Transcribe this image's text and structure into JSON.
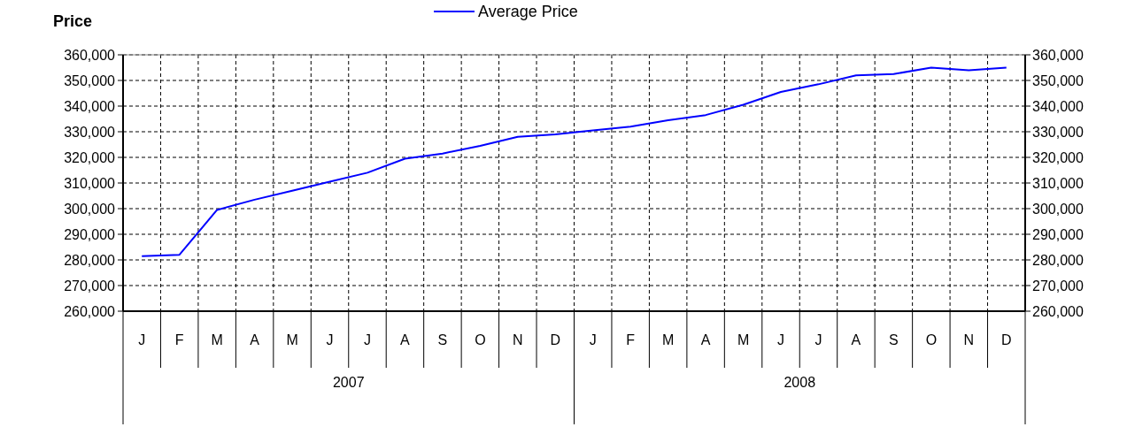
{
  "chart_data": {
    "type": "line",
    "ylabel": "Price",
    "categories": [
      "J",
      "F",
      "M",
      "A",
      "M",
      "J",
      "J",
      "A",
      "S",
      "O",
      "N",
      "D",
      "J",
      "F",
      "M",
      "A",
      "M",
      "J",
      "J",
      "A",
      "S",
      "O",
      "N",
      "D"
    ],
    "series": [
      {
        "name": "Average Price",
        "color": "#0000ff",
        "values": [
          281500,
          282000,
          299500,
          303500,
          307000,
          310500,
          314000,
          319500,
          321500,
          324500,
          328000,
          329000,
          330500,
          332000,
          334500,
          336500,
          340500,
          345500,
          348500,
          352000,
          352500,
          355000,
          354000,
          355000
        ]
      }
    ],
    "ylim": [
      260000,
      360000
    ],
    "yticks": [
      {
        "value": 260000,
        "label": "260,000"
      },
      {
        "value": 270000,
        "label": "270,000"
      },
      {
        "value": 280000,
        "label": "280,000"
      },
      {
        "value": 290000,
        "label": "290,000"
      },
      {
        "value": 300000,
        "label": "300,000"
      },
      {
        "value": 310000,
        "label": "310,000"
      },
      {
        "value": 320000,
        "label": "320,000"
      },
      {
        "value": 330000,
        "label": "330,000"
      },
      {
        "value": 340000,
        "label": "340,000"
      },
      {
        "value": 350000,
        "label": "350,000"
      },
      {
        "value": 360000,
        "label": "360,000"
      }
    ],
    "y2lim": [
      260000,
      360000
    ],
    "y2ticks": [
      {
        "value": 260000,
        "label": "260,000"
      },
      {
        "value": 270000,
        "label": "270,000"
      },
      {
        "value": 280000,
        "label": "280,000"
      },
      {
        "value": 290000,
        "label": "290,000"
      },
      {
        "value": 300000,
        "label": "300,000"
      },
      {
        "value": 310000,
        "label": "310,000"
      },
      {
        "value": 320000,
        "label": "320,000"
      },
      {
        "value": 330000,
        "label": "330,000"
      },
      {
        "value": 340000,
        "label": "340,000"
      },
      {
        "value": 350000,
        "label": "350,000"
      },
      {
        "value": 360000,
        "label": "360,000"
      }
    ],
    "annotations": [
      "2007",
      "2008"
    ],
    "grid": true,
    "legend": "top",
    "line_style": "solid"
  }
}
